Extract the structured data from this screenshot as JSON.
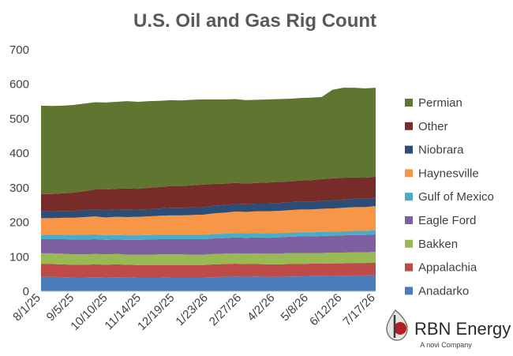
{
  "chart_data": {
    "type": "area",
    "stacked": true,
    "title": "U.S. Oil and Gas Rig Count",
    "xlabel": "",
    "ylabel": "",
    "ylim": [
      0,
      700
    ],
    "yticks": [
      "0",
      "100",
      "200",
      "300",
      "400",
      "500",
      "600",
      "700"
    ],
    "x_tick_labels": [
      "8/1/25",
      "9/5/25",
      "10/10/25",
      "11/14/25",
      "12/19/25",
      "1/23/26",
      "2/27/26",
      "4/2/26",
      "5/8/26",
      "6/12/26",
      "7/17/26"
    ],
    "grid": false,
    "legend_position": "right",
    "series": [
      {
        "name": "Anadarko",
        "color": "#4a7ebb",
        "values": [
          42,
          42,
          41,
          40,
          40,
          41,
          40,
          41,
          40,
          39,
          39,
          39,
          40,
          40,
          40,
          40,
          41,
          42,
          43,
          42,
          43,
          42,
          42,
          43,
          43,
          44,
          44,
          45,
          45,
          46,
          46,
          47
        ]
      },
      {
        "name": "Appalachia",
        "color": "#be4b48",
        "values": [
          37,
          37,
          37,
          37,
          37,
          37,
          37,
          37,
          37,
          37,
          37,
          37,
          36,
          36,
          36,
          36,
          37,
          37,
          37,
          37,
          36,
          36,
          36,
          36,
          36,
          36,
          36,
          36,
          36,
          36,
          36,
          36
        ]
      },
      {
        "name": "Bakken",
        "color": "#98b954",
        "values": [
          31,
          31,
          31,
          30,
          30,
          30,
          30,
          30,
          29,
          30,
          30,
          31,
          31,
          31,
          30,
          30,
          30,
          30,
          30,
          30,
          31,
          31,
          31,
          32,
          32,
          31,
          31,
          31,
          31,
          31,
          31,
          31
        ]
      },
      {
        "name": "Eagle Ford",
        "color": "#7d60a0",
        "values": [
          41,
          41,
          42,
          43,
          43,
          43,
          42,
          42,
          43,
          43,
          44,
          44,
          44,
          44,
          45,
          45,
          45,
          45,
          46,
          46,
          46,
          46,
          47,
          47,
          48,
          48,
          49,
          49,
          50,
          50,
          50,
          51
        ]
      },
      {
        "name": "Gulf of Mexico",
        "color": "#4bacc6",
        "values": [
          13,
          13,
          13,
          13,
          14,
          14,
          13,
          13,
          13,
          13,
          13,
          13,
          13,
          13,
          13,
          13,
          13,
          13,
          13,
          13,
          13,
          13,
          13,
          12,
          12,
          12,
          12,
          12,
          12,
          12,
          12,
          12
        ]
      },
      {
        "name": "Haynesville",
        "color": "#f79646",
        "values": [
          48,
          48,
          49,
          50,
          51,
          52,
          52,
          53,
          53,
          54,
          54,
          55,
          56,
          56,
          57,
          58,
          60,
          61,
          62,
          62,
          63,
          64,
          64,
          65,
          66,
          66,
          67,
          67,
          68,
          69,
          69,
          70
        ]
      },
      {
        "name": "Niobrara",
        "color": "#2c4d75",
        "values": [
          20,
          20,
          20,
          20,
          20,
          20,
          21,
          21,
          21,
          21,
          21,
          21,
          22,
          22,
          22,
          22,
          22,
          22,
          22,
          22,
          22,
          22,
          23,
          23,
          23,
          23,
          23,
          23,
          24,
          24,
          24,
          24
        ]
      },
      {
        "name": "Other",
        "color": "#772c2a",
        "values": [
          50,
          50,
          51,
          53,
          55,
          58,
          60,
          60,
          62,
          60,
          62,
          62,
          63,
          63,
          64,
          65,
          63,
          62,
          61,
          60,
          60,
          61,
          61,
          60,
          61,
          62,
          63,
          64,
          63,
          62,
          61,
          61
        ]
      },
      {
        "name": "Permian",
        "color": "#5f7530",
        "values": [
          256,
          255,
          254,
          254,
          254,
          253,
          252,
          252,
          253,
          252,
          251,
          250,
          249,
          248,
          248,
          247,
          245,
          244,
          243,
          242,
          241,
          241,
          240,
          240,
          239,
          239,
          238,
          257,
          261,
          260,
          259,
          258
        ]
      }
    ]
  },
  "logo": {
    "name": "RBN Energy",
    "tagline": "A novi Company",
    "icon": "rbn-drop-logo"
  }
}
